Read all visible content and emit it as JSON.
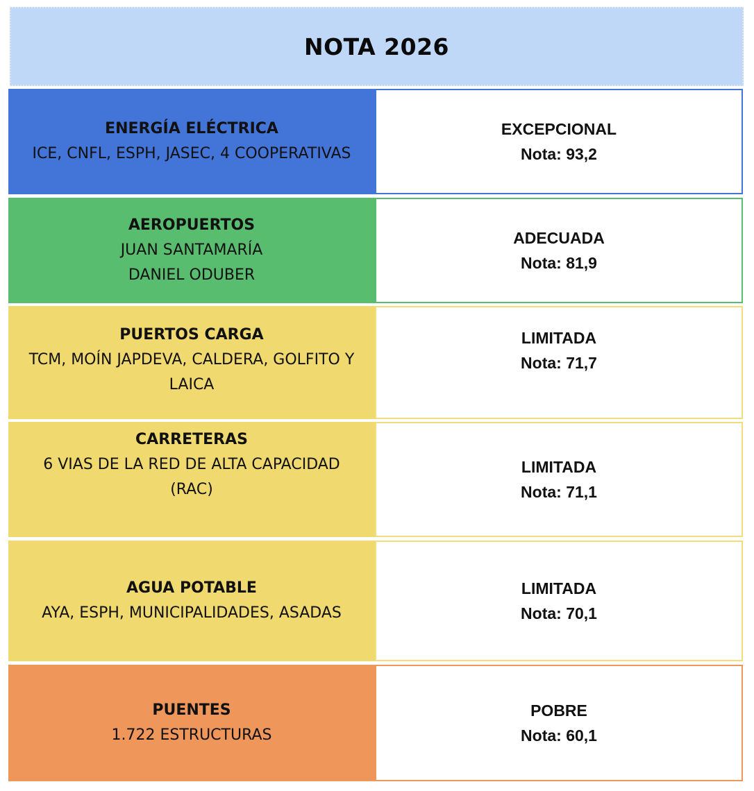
{
  "title": "NOTA 2026",
  "score_prefix": "Nota:",
  "rows": [
    {
      "category": "ENERGÍA ELÉCTRICA",
      "details": [
        "ICE, CNFL, ESPH, JASEC, 4 COOPERATIVAS"
      ],
      "rating": "EXCEPCIONAL",
      "score": "93,2",
      "color": "#4374d7",
      "border_color": "#4374d7"
    },
    {
      "category": "AEROPUERTOS",
      "details": [
        "JUAN SANTAMARÍA",
        "DANIEL ODUBER"
      ],
      "rating": "ADECUADA",
      "score": "81,9",
      "color": "#59bd6f",
      "border_color": "#59bd6f"
    },
    {
      "category": "PUERTOS CARGA",
      "details": [
        "TCM, MOÍN JAPDEVA, CALDERA, GOLFITO Y",
        "LAICA"
      ],
      "rating": "LIMITADA",
      "score": "71,7",
      "color": "#f0d96e",
      "border_color": "#f3dc7a"
    },
    {
      "category": "CARRETERAS",
      "details": [
        "6 VIAS DE LA RED DE ALTA CAPACIDAD",
        "(RAC)"
      ],
      "rating": "LIMITADA",
      "score": "71,1",
      "color": "#f0d96e",
      "border_color": "#f3dc7a"
    },
    {
      "category": "AGUA POTABLE",
      "details": [
        "AYA, ESPH, MUNICIPALIDADES, ASADAS"
      ],
      "rating": "LIMITADA",
      "score": "70,1",
      "color": "#f0d96e",
      "border_color": "#f3dc7a"
    },
    {
      "category": "PUENTES",
      "details": [
        "1.722 ESTRUCTURAS"
      ],
      "rating": "POBRE",
      "score": "60,1",
      "color": "#ef965b",
      "border_color": "#ef965b"
    }
  ]
}
